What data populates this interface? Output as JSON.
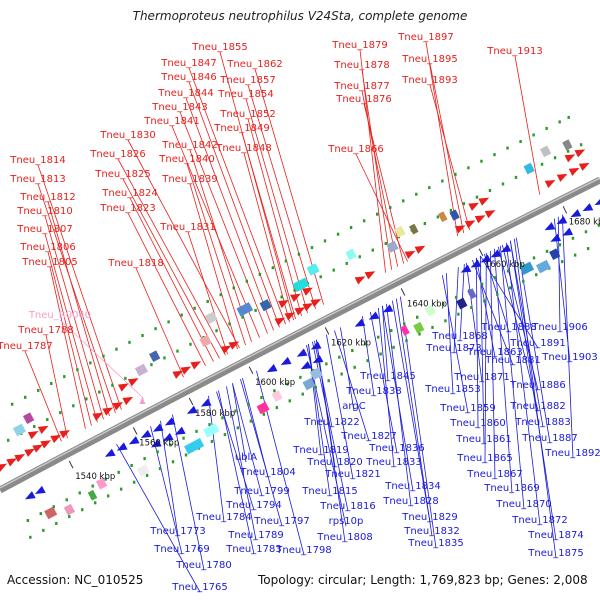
{
  "title": "Thermoproteus neutrophilus V24Sta, complete genome",
  "accession": "Accession: NC_010525",
  "summary": "Topology: circular; Length: 1,769,823 bp; Genes: 2,008",
  "colors": {
    "forward": "#e8201c",
    "reverse": "#1a1adc",
    "rna": "#f0a0c8",
    "backbone": "#8a8a8a",
    "tick_green": "#2a9a2a"
  },
  "ticks": [
    "1540 kbp",
    "1560 kbp",
    "1580 kbp",
    "1600 kbp",
    "1620 kbp",
    "1640 kbp",
    "1660 kbp",
    "1680 kbp"
  ],
  "labels_top": [
    "Tneu_1855",
    "Tneu_1847",
    "Tneu_1862",
    "Tneu_1846",
    "Tneu_1857",
    "Tneu_1844",
    "Tneu_1854",
    "Tneu_1843",
    "Tneu_1852",
    "Tneu_1841",
    "Tneu_1849",
    "Tneu_1830",
    "Tneu_1842",
    "Tneu_1848",
    "Tneu_1826",
    "Tneu_1840",
    "Tneu_1825",
    "Tneu_1839",
    "Tneu_1824",
    "Tneu_1823",
    "Tneu_1831",
    "Tneu_1818",
    "Tneu_1814",
    "Tneu_1813",
    "Tneu_1812",
    "Tneu_1810",
    "Tneu_1807",
    "Tneu_1806",
    "Tneu_1805",
    "Tneu_1788",
    "Tneu_1787",
    "Tneu_1879",
    "Tneu_1878",
    "Tneu_1877",
    "Tneu_1876",
    "Tneu_1866",
    "Tneu_1897",
    "Tneu_1895",
    "Tneu_1893",
    "Tneu_1913"
  ],
  "rna_label": "Tneu_R0040",
  "labels_bottom": [
    "Tneu_1888",
    "Tneu_1906",
    "Tneu_1868",
    "Tneu_1891",
    "Tneu_1873",
    "Tneu_1863",
    "Tneu_1881",
    "Tneu_1903",
    "Tneu_1845",
    "Tneu_1871",
    "Tneu_1838",
    "Tneu_1853",
    "Tneu_1886",
    "argC",
    "Tneu_1859",
    "Tneu_1882",
    "Tneu_1822",
    "Tneu_1883",
    "Tneu_1860",
    "Tneu_1827",
    "Tneu_1861",
    "Tneu_1887",
    "Tneu_1819",
    "Tneu_1836",
    "Tneu_1892",
    "ublA",
    "Tneu_1820",
    "Tneu_1833",
    "Tneu_1865",
    "Tneu_1804",
    "Tneu_1821",
    "Tneu_1867",
    "Tneu_1834",
    "Tneu_1799",
    "Tneu_1815",
    "Tneu_1869",
    "Tneu_1794",
    "Tneu_1828",
    "Tneu_1816",
    "Tneu_1870",
    "Tneu_1784",
    "Tneu_1797",
    "rps10p",
    "Tneu_1829",
    "Tneu_1872",
    "Tneu_1773",
    "Tneu_1789",
    "Tneu_1808",
    "Tneu_1832",
    "Tneu_1874",
    "Tneu_1783",
    "Tneu_1798",
    "Tneu_1769",
    "Tneu_1835",
    "Tneu_1875",
    "Tneu_1780",
    "Tneu_1765"
  ]
}
